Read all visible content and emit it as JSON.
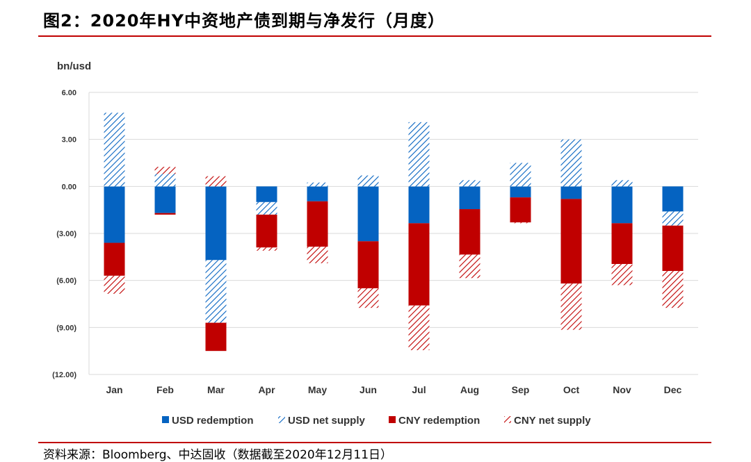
{
  "title": "图2：2020年HY中资地产债到期与净发行（月度）",
  "source": "资料来源：Bloomberg、中达固收（数据截至2020年12月11日）",
  "chart_data": {
    "type": "bar",
    "stacked": true,
    "unit_label": "bn/usd",
    "categories": [
      "Jan",
      "Feb",
      "Mar",
      "Apr",
      "May",
      "Jun",
      "Jul",
      "Aug",
      "Sep",
      "Oct",
      "Nov",
      "Dec"
    ],
    "y_ticks": [
      "6.00",
      "3.00",
      "0.00",
      "(3.00)",
      "(6.00)",
      "(9.00)",
      "(12.00)"
    ],
    "ylim": [
      -12,
      6
    ],
    "grid": true,
    "legend_position": "bottom",
    "series": [
      {
        "name": "USD redemption",
        "fill": "solid",
        "color": "#0563c1",
        "values": [
          -3.6,
          -1.7,
          -4.7,
          -1.0,
          -0.95,
          -3.5,
          -2.35,
          -1.45,
          -0.7,
          -0.8,
          -2.35,
          -1.6
        ]
      },
      {
        "name": "USD net supply",
        "fill": "hatched",
        "color": "#0563c1",
        "values": [
          4.7,
          0.8,
          -4.0,
          -0.8,
          0.25,
          0.7,
          4.1,
          0.4,
          1.5,
          3.0,
          0.4,
          -0.9
        ]
      },
      {
        "name": "CNY redemption",
        "fill": "solid",
        "color": "#c00000",
        "values": [
          -2.1,
          -0.1,
          -1.8,
          -2.1,
          -2.9,
          -3.0,
          -5.25,
          -2.9,
          -1.6,
          -5.4,
          -2.6,
          -2.9
        ]
      },
      {
        "name": "CNY net supply",
        "fill": "hatched",
        "color": "#c00000",
        "values": [
          -1.15,
          0.45,
          0.65,
          -0.2,
          -1.05,
          -1.25,
          -2.85,
          -1.5,
          -0.05,
          -2.95,
          -1.35,
          -2.35
        ]
      }
    ]
  }
}
